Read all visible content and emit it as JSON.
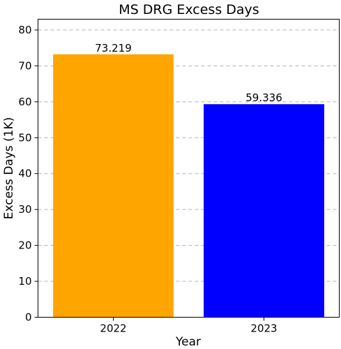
{
  "chart_data": {
    "type": "bar",
    "title": "MS DRG Excess Days",
    "xlabel": "Year",
    "ylabel": "Excess Days (1K)",
    "categories": [
      "2022",
      "2023"
    ],
    "values": [
      73.219,
      59.336
    ],
    "value_labels": [
      "73.219",
      "59.336"
    ],
    "colors": [
      "#FFA500",
      "#0000FF"
    ],
    "ylim": [
      0,
      83
    ],
    "yticks": [
      0,
      10,
      20,
      30,
      40,
      50,
      60,
      70,
      80
    ],
    "grid": "y-dashed",
    "legend": "none"
  }
}
